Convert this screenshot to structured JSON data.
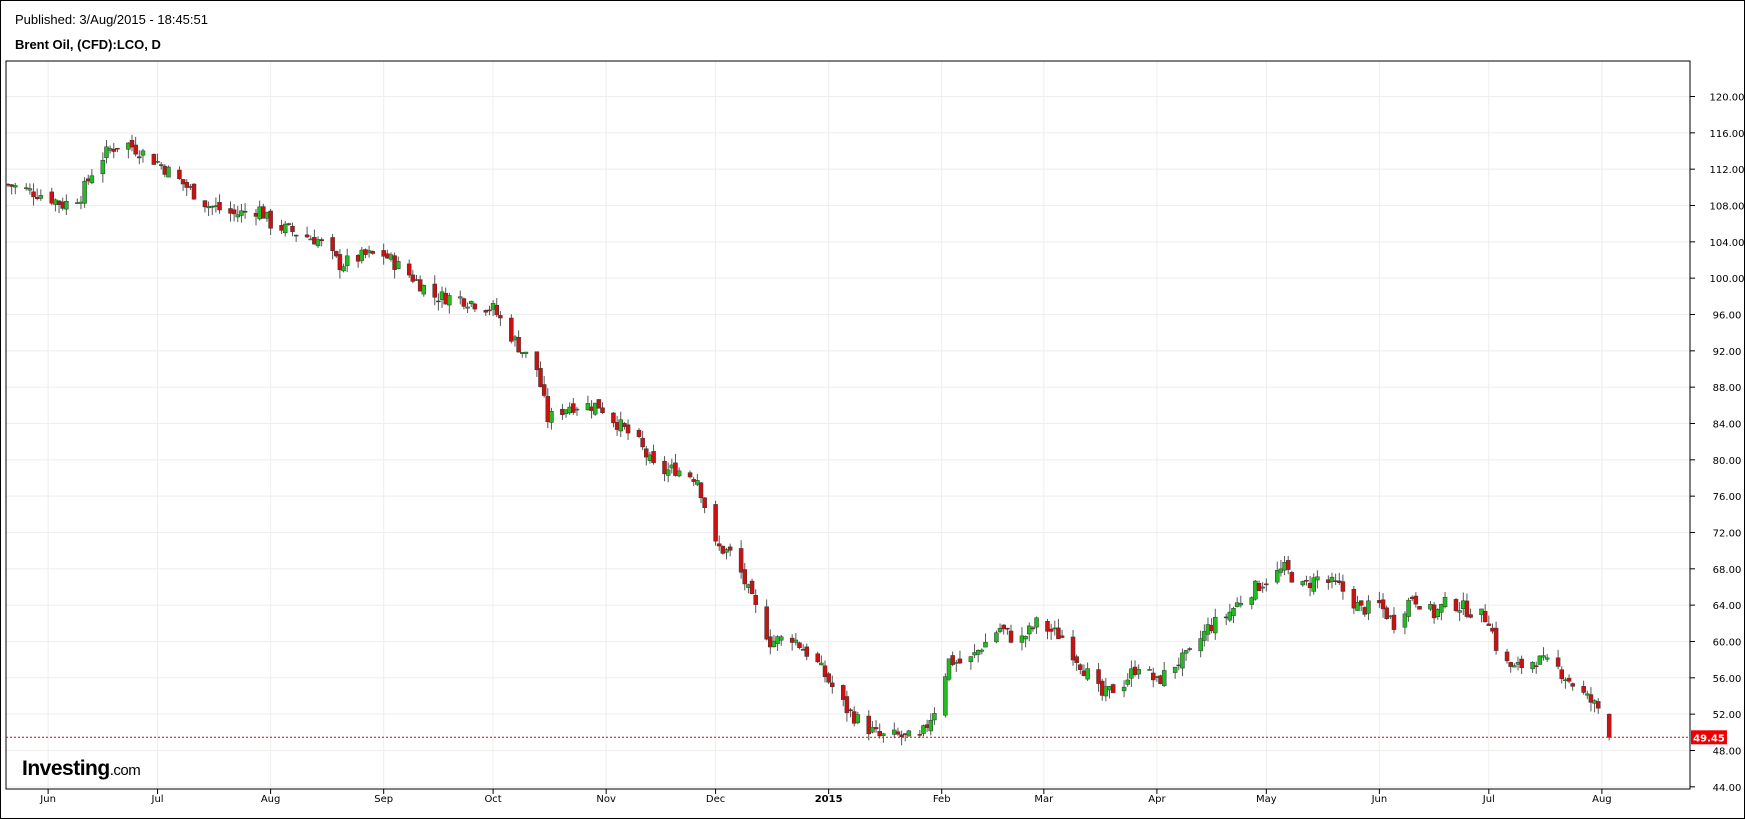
{
  "header": {
    "published": "Published: 3/Aug/2015 - 18:45:51",
    "symbol": "Brent Oil, (CFD):LCO, D"
  },
  "logo": {
    "name": "Investing",
    "suffix": ".com"
  },
  "chart_data": {
    "type": "candlestick",
    "title": "Brent Oil, (CFD):LCO, D",
    "y_ticks": [
      "120.00",
      "116.00",
      "112.00",
      "108.00",
      "104.00",
      "100.00",
      "96.00",
      "92.00",
      "88.00",
      "84.00",
      "80.00",
      "76.00",
      "72.00",
      "68.00",
      "64.00",
      "60.00",
      "56.00",
      "52.00",
      "48.00",
      "44.00"
    ],
    "ylim": [
      44,
      120
    ],
    "x_ticks": [
      {
        "label": "Jun",
        "date": "2014-06-01",
        "bold": false
      },
      {
        "label": "Jul",
        "date": "2014-07-01",
        "bold": false
      },
      {
        "label": "Aug",
        "date": "2014-08-01",
        "bold": false
      },
      {
        "label": "Sep",
        "date": "2014-09-01",
        "bold": false
      },
      {
        "label": "Oct",
        "date": "2014-10-01",
        "bold": false
      },
      {
        "label": "Nov",
        "date": "2014-11-01",
        "bold": false
      },
      {
        "label": "Dec",
        "date": "2014-12-01",
        "bold": false
      },
      {
        "label": "2015",
        "date": "2015-01-01",
        "bold": true
      },
      {
        "label": "Feb",
        "date": "2015-02-01",
        "bold": false
      },
      {
        "label": "Mar",
        "date": "2015-03-01",
        "bold": false
      },
      {
        "label": "Apr",
        "date": "2015-04-01",
        "bold": false
      },
      {
        "label": "May",
        "date": "2015-05-01",
        "bold": false
      },
      {
        "label": "Jun",
        "date": "2015-06-01",
        "bold": false
      },
      {
        "label": "Jul",
        "date": "2015-07-01",
        "bold": false
      },
      {
        "label": "Aug",
        "date": "2015-08-01",
        "bold": false
      }
    ],
    "xlim": [
      "2014-05-21",
      "2015-08-12"
    ],
    "last_price": 49.45,
    "last_price_label": "49.45",
    "colors": {
      "up": "#22bb22",
      "down": "#cc1111",
      "last_line": "#ee0000",
      "grid": "#eeeeee"
    },
    "grid": true,
    "closes": [
      {
        "date": "2014-05-21",
        "close": 110.3
      },
      {
        "date": "2014-06-01",
        "close": 109.0
      },
      {
        "date": "2014-06-05",
        "close": 108.1
      },
      {
        "date": "2014-06-10",
        "close": 109.1
      },
      {
        "date": "2014-06-14",
        "close": 112.5
      },
      {
        "date": "2014-06-18",
        "close": 114.2
      },
      {
        "date": "2014-06-22",
        "close": 115.0
      },
      {
        "date": "2014-06-26",
        "close": 114.0
      },
      {
        "date": "2014-07-01",
        "close": 112.8
      },
      {
        "date": "2014-07-08",
        "close": 110.4
      },
      {
        "date": "2014-07-15",
        "close": 108.0
      },
      {
        "date": "2014-07-22",
        "close": 107.0
      },
      {
        "date": "2014-07-29",
        "close": 107.6
      },
      {
        "date": "2014-08-01",
        "close": 106.0
      },
      {
        "date": "2014-08-08",
        "close": 105.0
      },
      {
        "date": "2014-08-14",
        "close": 104.2
      },
      {
        "date": "2014-08-20",
        "close": 101.5
      },
      {
        "date": "2014-08-27",
        "close": 102.5
      },
      {
        "date": "2014-09-01",
        "close": 102.6
      },
      {
        "date": "2014-09-08",
        "close": 100.4
      },
      {
        "date": "2014-09-15",
        "close": 98.0
      },
      {
        "date": "2014-09-22",
        "close": 97.8
      },
      {
        "date": "2014-10-01",
        "close": 96.6
      },
      {
        "date": "2014-10-08",
        "close": 92.5
      },
      {
        "date": "2014-10-13",
        "close": 90.0
      },
      {
        "date": "2014-10-16",
        "close": 84.5
      },
      {
        "date": "2014-10-22",
        "close": 86.0
      },
      {
        "date": "2014-10-30",
        "close": 86.0
      },
      {
        "date": "2014-11-05",
        "close": 83.7
      },
      {
        "date": "2014-11-10",
        "close": 81.8
      },
      {
        "date": "2014-11-15",
        "close": 78.5
      },
      {
        "date": "2014-11-20",
        "close": 79.0
      },
      {
        "date": "2014-11-26",
        "close": 78.0
      },
      {
        "date": "2014-12-01",
        "close": 70.5
      },
      {
        "date": "2014-12-06",
        "close": 69.5
      },
      {
        "date": "2014-12-11",
        "close": 64.5
      },
      {
        "date": "2014-12-16",
        "close": 60.0
      },
      {
        "date": "2014-12-22",
        "close": 60.5
      },
      {
        "date": "2014-12-29",
        "close": 57.5
      },
      {
        "date": "2015-01-06",
        "close": 52.5
      },
      {
        "date": "2015-01-10",
        "close": 51.0
      },
      {
        "date": "2015-01-15",
        "close": 49.5
      },
      {
        "date": "2015-01-20",
        "close": 49.6
      },
      {
        "date": "2015-01-26",
        "close": 49.2
      },
      {
        "date": "2015-01-30",
        "close": 52.5
      },
      {
        "date": "2015-02-03",
        "close": 57.9
      },
      {
        "date": "2015-02-08",
        "close": 57.5
      },
      {
        "date": "2015-02-12",
        "close": 59.5
      },
      {
        "date": "2015-02-17",
        "close": 61.5
      },
      {
        "date": "2015-02-22",
        "close": 59.8
      },
      {
        "date": "2015-02-27",
        "close": 62.0
      },
      {
        "date": "2015-03-06",
        "close": 60.5
      },
      {
        "date": "2015-03-12",
        "close": 57.0
      },
      {
        "date": "2015-03-17",
        "close": 54.0
      },
      {
        "date": "2015-03-23",
        "close": 55.5
      },
      {
        "date": "2015-03-27",
        "close": 57.5
      },
      {
        "date": "2015-04-01",
        "close": 55.5
      },
      {
        "date": "2015-04-06",
        "close": 57.5
      },
      {
        "date": "2015-04-10",
        "close": 58.5
      },
      {
        "date": "2015-04-15",
        "close": 61.5
      },
      {
        "date": "2015-04-20",
        "close": 62.8
      },
      {
        "date": "2015-04-25",
        "close": 65.0
      },
      {
        "date": "2015-04-30",
        "close": 66.5
      },
      {
        "date": "2015-05-06",
        "close": 68.0
      },
      {
        "date": "2015-05-11",
        "close": 66.0
      },
      {
        "date": "2015-05-15",
        "close": 67.0
      },
      {
        "date": "2015-05-21",
        "close": 66.0
      },
      {
        "date": "2015-05-27",
        "close": 63.5
      },
      {
        "date": "2015-06-01",
        "close": 64.0
      },
      {
        "date": "2015-06-05",
        "close": 62.0
      },
      {
        "date": "2015-06-10",
        "close": 65.0
      },
      {
        "date": "2015-06-16",
        "close": 63.0
      },
      {
        "date": "2015-06-20",
        "close": 64.5
      },
      {
        "date": "2015-06-25",
        "close": 63.5
      },
      {
        "date": "2015-07-01",
        "close": 62.5
      },
      {
        "date": "2015-07-04",
        "close": 58.0
      },
      {
        "date": "2015-07-08",
        "close": 57.0
      },
      {
        "date": "2015-07-14",
        "close": 58.0
      },
      {
        "date": "2015-07-20",
        "close": 57.0
      },
      {
        "date": "2015-07-26",
        "close": 54.5
      },
      {
        "date": "2015-07-30",
        "close": 53.0
      },
      {
        "date": "2015-08-02",
        "close": 52.0
      },
      {
        "date": "2015-08-03",
        "close": 49.45
      }
    ]
  }
}
